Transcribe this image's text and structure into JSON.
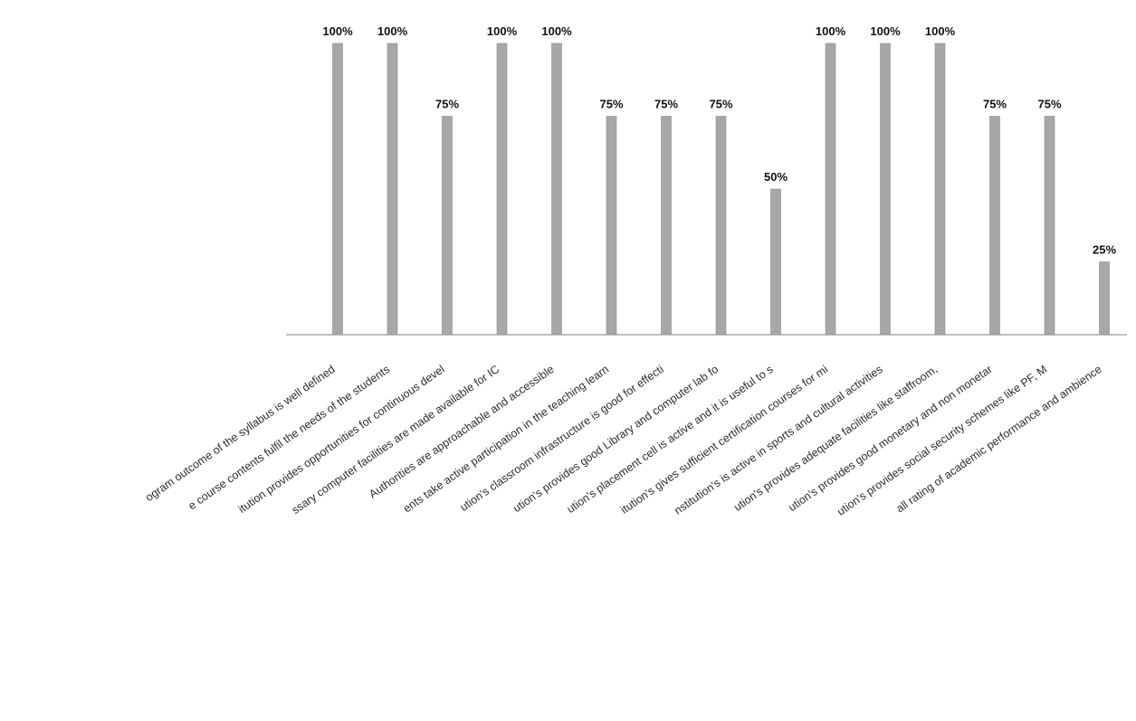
{
  "chart_data": {
    "type": "bar",
    "title": "",
    "xlabel": "",
    "ylabel": "",
    "ylim": [
      0,
      100
    ],
    "grid": false,
    "legend": "none",
    "bar_color": "#a7a7a7",
    "categories": [
      "ogram outcome of the syllabus is well defined",
      "e course contents fulfil the needs of the students",
      "itution provides opportunities for continuous devel",
      "ssary computer facilities are made available for IC",
      "Authorities are approachable and accessible",
      "ents take active participation in the teaching learn",
      "ution's classroom infrastructure is good for effecti",
      "ution's provides good Library and computer lab fo",
      "ution's placement cell is active and it is useful to s",
      "itution's gives sufficient certification courses for mi",
      "nstitution's is active in sports and cultural activities",
      "ution's provides adequate facilities like staffroom,",
      "ution's provides good monetary and non monetar",
      "ution's provides social security schemes like PF, M",
      "all rating of academic performance and ambience"
    ],
    "values": [
      100,
      100,
      75,
      100,
      100,
      75,
      75,
      75,
      50,
      100,
      100,
      100,
      75,
      75,
      25
    ],
    "data_labels": [
      "100%",
      "100%",
      "75%",
      "100%",
      "100%",
      "75%",
      "75%",
      "75%",
      "50%",
      "100%",
      "100%",
      "100%",
      "75%",
      "75%",
      "25%"
    ]
  }
}
